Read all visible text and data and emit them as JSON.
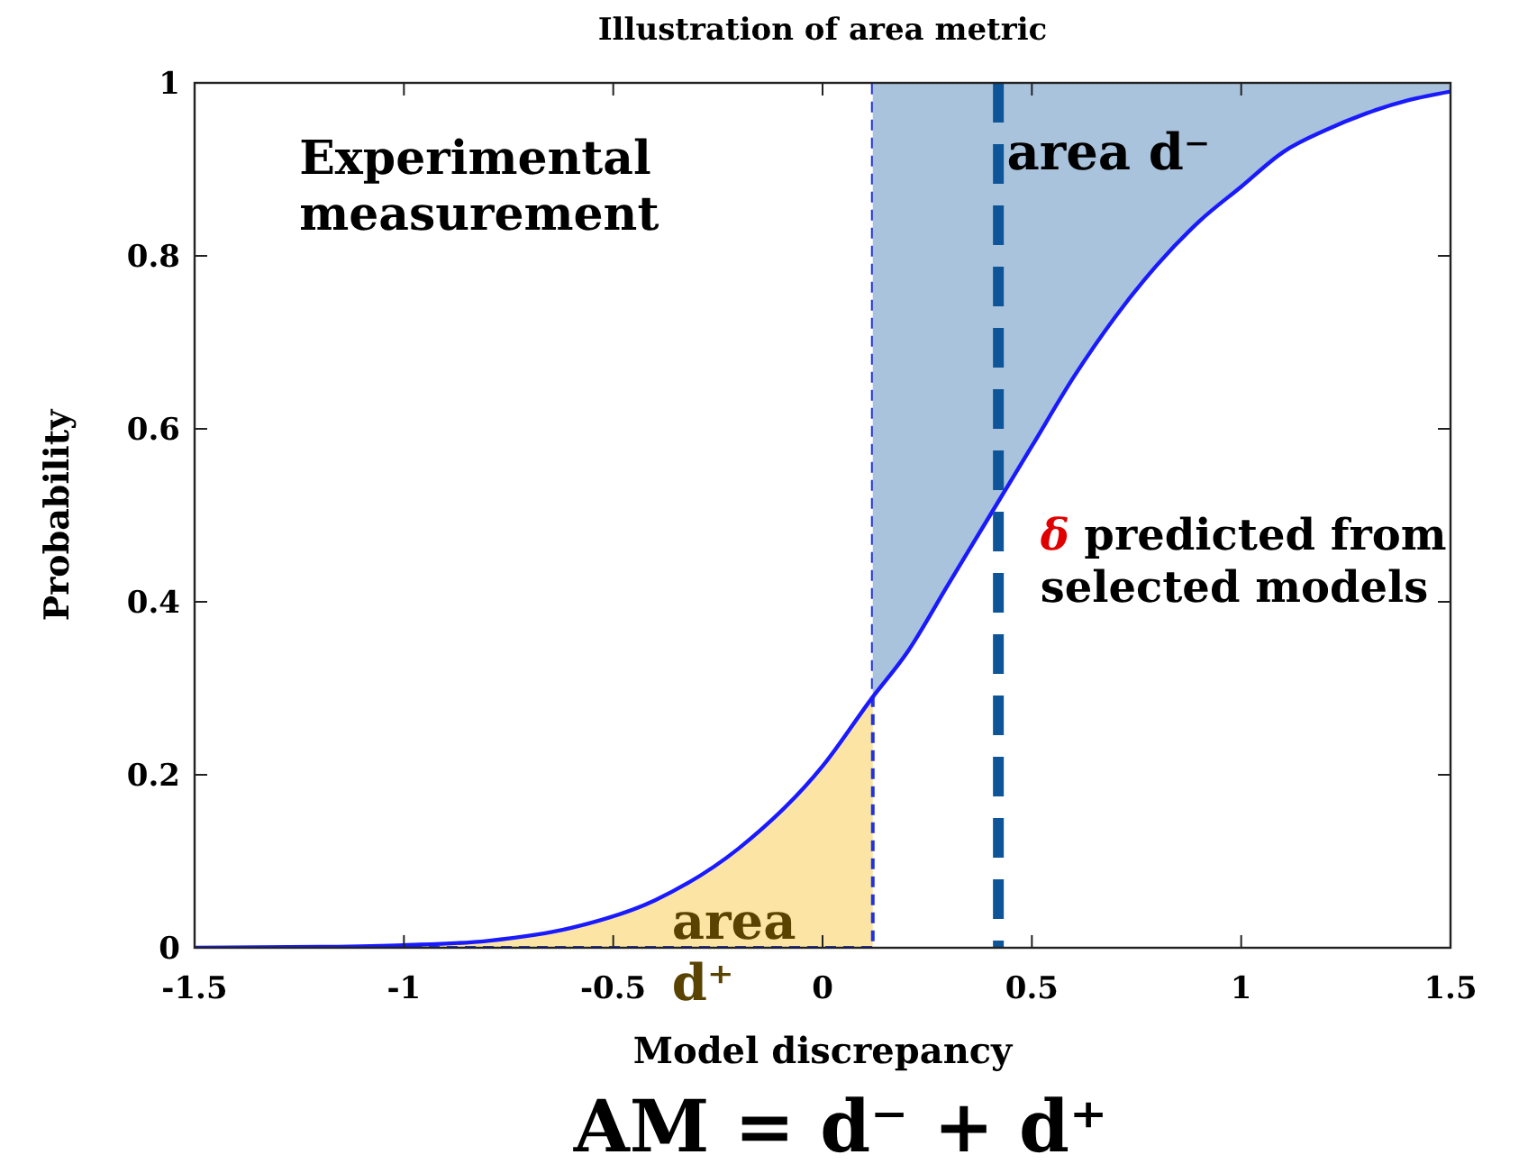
{
  "chart_data": {
    "type": "line",
    "title": "Illustration of area metric",
    "xlabel": "Model discrepancy",
    "ylabel": "Probability",
    "xlim": [
      -1.5,
      1.5
    ],
    "ylim": [
      0,
      1
    ],
    "xticks": [
      -1.5,
      -1,
      -0.5,
      0,
      0.5,
      1,
      1.5
    ],
    "yticks": [
      0,
      0.2,
      0.4,
      0.6,
      0.8,
      1
    ],
    "grid": false,
    "marker": "none",
    "series": [
      {
        "type": "area",
        "color": "#fce5a4",
        "x": [
          -1.5,
          -1.2,
          -1.0,
          -0.8,
          -0.6,
          -0.4,
          -0.2,
          0,
          0.12
        ],
        "values": [
          0,
          0.001,
          0.003,
          0.008,
          0.023,
          0.055,
          0.115,
          0.21,
          0.29
        ]
      },
      {
        "type": "step",
        "color": "#2233dd",
        "line_style": "dashed",
        "x": [
          -1.5,
          0.12,
          1.5
        ],
        "values": [
          0,
          1,
          1
        ]
      },
      {
        "type": "line",
        "color": "#1a1aff",
        "line_style": "solid",
        "x": [
          -1.5,
          -1.2,
          -1.0,
          -0.8,
          -0.6,
          -0.4,
          -0.2,
          0,
          0.12,
          0.2,
          0.3,
          0.4,
          0.5,
          0.6,
          0.7,
          0.8,
          0.9,
          1.0,
          1.1,
          1.2,
          1.3,
          1.4,
          1.5
        ],
        "values": [
          0,
          0.001,
          0.003,
          0.008,
          0.023,
          0.055,
          0.115,
          0.21,
          0.29,
          0.34,
          0.42,
          0.5,
          0.58,
          0.66,
          0.73,
          0.79,
          0.84,
          0.88,
          0.92,
          0.945,
          0.965,
          0.98,
          0.99
        ],
        "lower": [
          null,
          null,
          null,
          null,
          null,
          null,
          null,
          null,
          0.29,
          0.34,
          0.42,
          0.5,
          0.58,
          0.66,
          0.73,
          0.79,
          0.84,
          0.88,
          0.92,
          0.945,
          0.965,
          0.98,
          0.99
        ],
        "upper": [
          null,
          null,
          null,
          null,
          null,
          null,
          null,
          null,
          1,
          1,
          1,
          1,
          1,
          1,
          1,
          1,
          1,
          1,
          1,
          1,
          1,
          1,
          1
        ]
      }
    ],
    "ref_lines": [
      {
        "axis": "x",
        "value": 0.42,
        "color": "#0d5598",
        "line_style": "dashed"
      }
    ],
    "annotations": [
      "Experimental measurement",
      "area d⁻",
      "area d⁺",
      "δ predicted from selected models",
      "AM = d⁻ + d⁺"
    ]
  }
}
